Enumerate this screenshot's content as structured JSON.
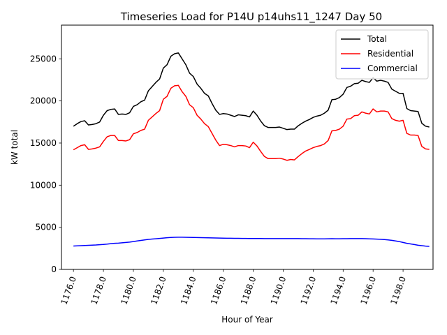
{
  "chart_data": {
    "type": "line",
    "title": "Timeseries Load for P14U p14uhs11_1247  Day 50",
    "xlabel": "Hour of Year",
    "ylabel": "kW total",
    "xlim": [
      1175.2,
      1200.0
    ],
    "ylim": [
      0,
      29000
    ],
    "x_tick_values": [
      1176,
      1178,
      1180,
      1182,
      1184,
      1186,
      1188,
      1190,
      1192,
      1194,
      1196,
      1198
    ],
    "x_tick_labels": [
      "1176.0",
      "1178.0",
      "1180.0",
      "1182.0",
      "1184.0",
      "1186.0",
      "1188.0",
      "1190.0",
      "1192.0",
      "1194.0",
      "1196.0",
      "1198.0"
    ],
    "y_tick_values": [
      0,
      5000,
      10000,
      15000,
      20000,
      25000
    ],
    "y_tick_labels": [
      "0",
      "5000",
      "10000",
      "15000",
      "20000",
      "25000"
    ],
    "grid": false,
    "legend_position": "top-right",
    "x": [
      1176.0,
      1176.25,
      1176.5,
      1176.75,
      1177.0,
      1177.25,
      1177.5,
      1177.75,
      1178.0,
      1178.25,
      1178.5,
      1178.75,
      1179.0,
      1179.25,
      1179.5,
      1179.75,
      1180.0,
      1180.25,
      1180.5,
      1180.75,
      1181.0,
      1181.25,
      1181.5,
      1181.75,
      1182.0,
      1182.25,
      1182.5,
      1182.75,
      1183.0,
      1183.25,
      1183.5,
      1183.75,
      1184.0,
      1184.25,
      1184.5,
      1184.75,
      1185.0,
      1185.25,
      1185.5,
      1185.75,
      1186.0,
      1186.25,
      1186.5,
      1186.75,
      1187.0,
      1187.25,
      1187.5,
      1187.75,
      1188.0,
      1188.25,
      1188.5,
      1188.75,
      1189.0,
      1189.25,
      1189.5,
      1189.75,
      1190.0,
      1190.25,
      1190.5,
      1190.75,
      1191.0,
      1191.25,
      1191.5,
      1191.75,
      1192.0,
      1192.25,
      1192.5,
      1192.75,
      1193.0,
      1193.25,
      1193.5,
      1193.75,
      1194.0,
      1194.25,
      1194.5,
      1194.75,
      1195.0,
      1195.25,
      1195.5,
      1195.75,
      1196.0,
      1196.25,
      1196.5,
      1196.75,
      1197.0,
      1197.25,
      1197.5,
      1197.75,
      1198.0,
      1198.25,
      1198.5,
      1198.75,
      1199.0,
      1199.25,
      1199.5,
      1199.75
    ],
    "series": [
      {
        "name": "Total",
        "color": "#000000",
        "values": [
          17000,
          17300,
          17550,
          17650,
          17150,
          17200,
          17300,
          17500,
          18300,
          18850,
          19000,
          19050,
          18400,
          18450,
          18400,
          18600,
          19350,
          19550,
          19900,
          20100,
          21200,
          21700,
          22200,
          22600,
          23900,
          24300,
          25300,
          25600,
          25700,
          25000,
          24300,
          23300,
          22900,
          22000,
          21500,
          20900,
          20600,
          19700,
          18900,
          18400,
          18500,
          18450,
          18300,
          18150,
          18350,
          18300,
          18250,
          18100,
          18800,
          18300,
          17600,
          17050,
          16850,
          16850,
          16850,
          16900,
          16750,
          16600,
          16650,
          16650,
          17050,
          17350,
          17600,
          17800,
          18050,
          18200,
          18300,
          18550,
          18900,
          20150,
          20200,
          20400,
          20800,
          21600,
          21750,
          22050,
          22100,
          22450,
          22300,
          22200,
          22750,
          22350,
          22450,
          22350,
          22200,
          21400,
          21150,
          20900,
          20900,
          19100,
          18850,
          18800,
          18750,
          17350,
          17000,
          16900
        ]
      },
      {
        "name": "Residential",
        "color": "#ff0000",
        "values": [
          14200,
          14450,
          14700,
          14800,
          14250,
          14300,
          14400,
          14550,
          15200,
          15750,
          15900,
          15900,
          15300,
          15300,
          15250,
          15400,
          16100,
          16250,
          16500,
          16650,
          17700,
          18100,
          18500,
          18850,
          20200,
          20550,
          21500,
          21800,
          21850,
          21100,
          20550,
          19550,
          19200,
          18300,
          17850,
          17300,
          16950,
          16150,
          15350,
          14700,
          14850,
          14800,
          14700,
          14550,
          14700,
          14700,
          14650,
          14450,
          15100,
          14650,
          14000,
          13400,
          13150,
          13150,
          13150,
          13200,
          13100,
          12950,
          13050,
          13000,
          13400,
          13750,
          14050,
          14250,
          14450,
          14600,
          14700,
          14900,
          15300,
          16450,
          16500,
          16650,
          17000,
          17850,
          17900,
          18250,
          18300,
          18700,
          18550,
          18450,
          19050,
          18700,
          18800,
          18800,
          18700,
          17900,
          17700,
          17600,
          17700,
          16150,
          15950,
          15950,
          15900,
          14600,
          14300,
          14250
        ]
      },
      {
        "name": "Commercial",
        "color": "#0000ff",
        "values": [
          2780,
          2800,
          2820,
          2840,
          2860,
          2880,
          2900,
          2930,
          2960,
          3000,
          3060,
          3100,
          3120,
          3160,
          3200,
          3240,
          3300,
          3380,
          3440,
          3500,
          3560,
          3600,
          3640,
          3680,
          3720,
          3760,
          3790,
          3810,
          3820,
          3820,
          3810,
          3800,
          3790,
          3780,
          3770,
          3760,
          3750,
          3740,
          3730,
          3720,
          3710,
          3700,
          3700,
          3690,
          3690,
          3680,
          3680,
          3670,
          3670,
          3670,
          3670,
          3660,
          3660,
          3660,
          3660,
          3660,
          3660,
          3660,
          3660,
          3660,
          3660,
          3650,
          3650,
          3640,
          3640,
          3630,
          3620,
          3630,
          3640,
          3650,
          3640,
          3640,
          3650,
          3650,
          3660,
          3660,
          3660,
          3660,
          3650,
          3630,
          3610,
          3590,
          3570,
          3540,
          3500,
          3450,
          3380,
          3300,
          3200,
          3100,
          3020,
          2950,
          2870,
          2820,
          2770,
          2730
        ]
      }
    ]
  }
}
